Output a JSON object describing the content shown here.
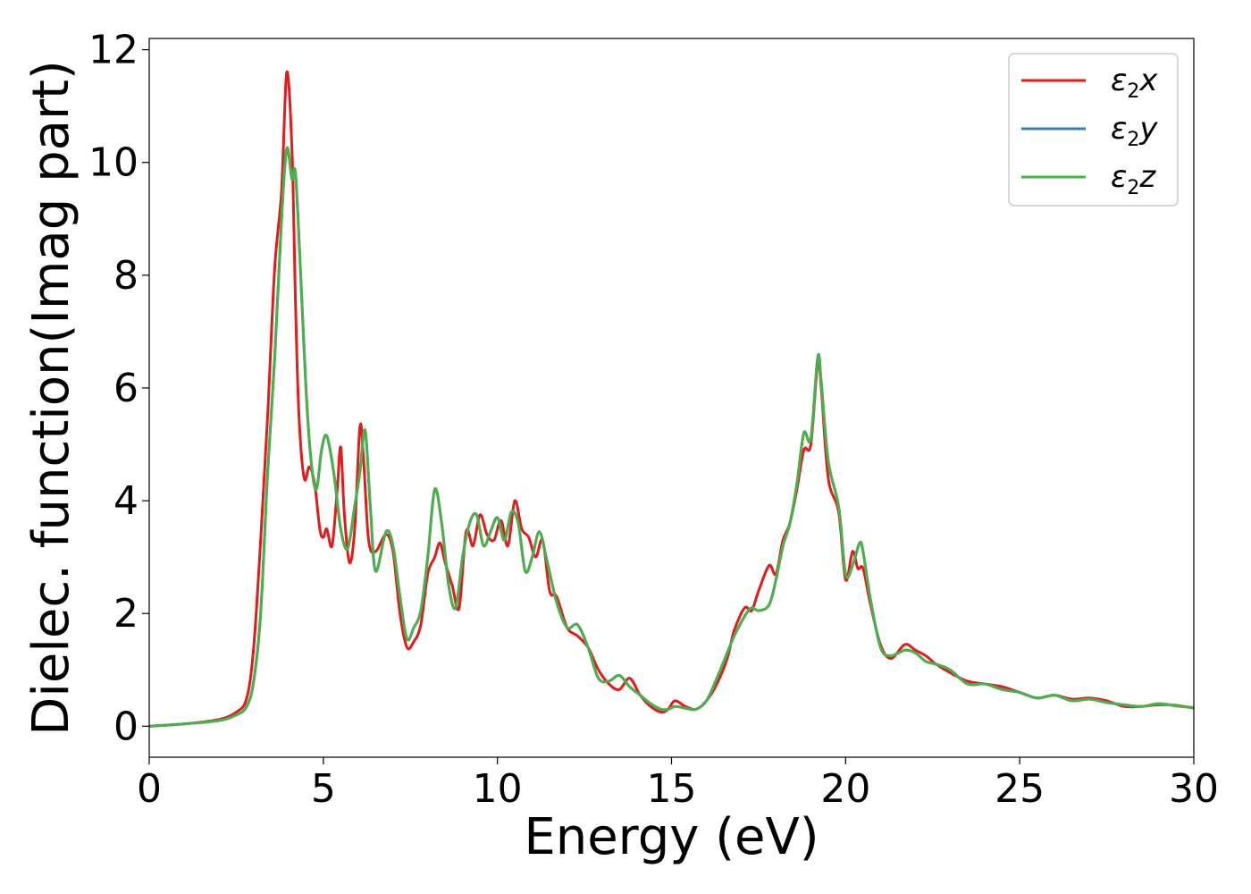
{
  "chart_data": {
    "type": "line",
    "xlabel": "Energy (eV)",
    "ylabel": "Dielec. function(Imag part)",
    "xlim": [
      0,
      30
    ],
    "ylim": [
      -0.55,
      12.2
    ],
    "xticks": [
      "0",
      "5",
      "10",
      "15",
      "20",
      "25",
      "30"
    ],
    "yticks": [
      "0",
      "2",
      "4",
      "6",
      "8",
      "10",
      "12"
    ],
    "grid": false,
    "legend_position": "top-right",
    "series": [
      {
        "name": "ε2x",
        "legend_base": "ε",
        "legend_sub": "2",
        "legend_tail": "x",
        "color": "#e41a1c",
        "x": [
          0,
          1,
          2,
          2.5,
          2.8,
          3.0,
          3.2,
          3.4,
          3.6,
          3.8,
          3.95,
          4.1,
          4.2,
          4.3,
          4.45,
          4.6,
          4.75,
          4.9,
          5.0,
          5.1,
          5.25,
          5.4,
          5.5,
          5.6,
          5.75,
          5.9,
          6.05,
          6.15,
          6.3,
          6.5,
          6.8,
          7.0,
          7.2,
          7.4,
          7.6,
          7.8,
          8.0,
          8.2,
          8.35,
          8.5,
          8.7,
          8.9,
          9.1,
          9.3,
          9.5,
          9.7,
          9.9,
          10.1,
          10.3,
          10.5,
          10.7,
          10.9,
          11.1,
          11.3,
          11.5,
          11.7,
          12.0,
          12.3,
          12.6,
          12.9,
          13.2,
          13.5,
          13.8,
          14.1,
          14.4,
          14.7,
          14.9,
          15.1,
          15.4,
          15.7,
          16.0,
          16.3,
          16.6,
          16.8,
          17.1,
          17.3,
          17.5,
          17.8,
          18.0,
          18.2,
          18.4,
          18.6,
          18.8,
          19.0,
          19.2,
          19.3,
          19.5,
          19.8,
          20.0,
          20.2,
          20.35,
          20.5,
          20.7,
          21.0,
          21.3,
          21.7,
          22.0,
          22.3,
          22.6,
          23.0,
          23.5,
          24.0,
          24.5,
          25.0,
          25.5,
          26.0,
          26.5,
          27.0,
          27.5,
          28.0,
          28.5,
          29.0,
          29.5,
          30.0
        ],
        "y": [
          0,
          0.04,
          0.12,
          0.25,
          0.5,
          1.4,
          3.3,
          5.5,
          8.1,
          9.5,
          11.6,
          10.2,
          7.5,
          5.5,
          4.4,
          4.6,
          4.3,
          3.5,
          3.35,
          3.5,
          3.2,
          4.2,
          4.95,
          3.8,
          2.9,
          3.5,
          5.3,
          4.8,
          3.3,
          3.1,
          3.4,
          3.1,
          2.0,
          1.4,
          1.5,
          1.8,
          2.7,
          3.0,
          3.25,
          2.9,
          2.5,
          2.1,
          3.45,
          3.2,
          3.75,
          3.4,
          3.3,
          3.65,
          3.2,
          4.0,
          3.5,
          3.35,
          3.0,
          3.3,
          2.4,
          2.3,
          1.75,
          1.6,
          1.4,
          1.0,
          0.75,
          0.65,
          0.85,
          0.55,
          0.35,
          0.25,
          0.3,
          0.45,
          0.35,
          0.3,
          0.45,
          0.75,
          1.2,
          1.7,
          2.1,
          2.05,
          2.4,
          2.85,
          2.7,
          3.3,
          3.6,
          4.2,
          4.9,
          5.0,
          6.45,
          6.0,
          4.4,
          3.8,
          2.6,
          3.1,
          2.8,
          2.8,
          2.2,
          1.45,
          1.2,
          1.45,
          1.35,
          1.25,
          1.1,
          0.95,
          0.8,
          0.75,
          0.7,
          0.6,
          0.5,
          0.55,
          0.48,
          0.5,
          0.45,
          0.35,
          0.35,
          0.38,
          0.37,
          0.32
        ]
      },
      {
        "name": "ε2y",
        "legend_base": "ε",
        "legend_sub": "2",
        "legend_tail": "y",
        "color": "#377eb8",
        "x": [
          0,
          1,
          2,
          2.5,
          2.8,
          3.0,
          3.2,
          3.4,
          3.6,
          3.8,
          3.95,
          4.1,
          4.2,
          4.35,
          4.5,
          4.65,
          4.8,
          4.95,
          5.1,
          5.3,
          5.5,
          5.7,
          5.9,
          6.05,
          6.2,
          6.35,
          6.5,
          6.8,
          7.0,
          7.2,
          7.4,
          7.6,
          7.8,
          8.0,
          8.2,
          8.4,
          8.6,
          8.8,
          9.0,
          9.2,
          9.4,
          9.6,
          9.8,
          10.0,
          10.2,
          10.4,
          10.6,
          10.8,
          11.0,
          11.2,
          11.4,
          11.7,
          12.0,
          12.3,
          12.6,
          12.9,
          13.2,
          13.5,
          13.8,
          14.1,
          14.4,
          14.7,
          14.9,
          15.1,
          15.4,
          15.7,
          16.0,
          16.3,
          16.6,
          16.8,
          17.1,
          17.3,
          17.5,
          17.8,
          18.0,
          18.2,
          18.4,
          18.6,
          18.8,
          19.0,
          19.2,
          19.3,
          19.5,
          19.8,
          20.0,
          20.2,
          20.4,
          20.5,
          20.7,
          21.0,
          21.3,
          21.7,
          22.0,
          22.3,
          22.6,
          23.0,
          23.5,
          24.0,
          24.5,
          25.0,
          25.5,
          26.0,
          26.5,
          27.0,
          27.5,
          28.0,
          28.5,
          29.0,
          29.5,
          30.0
        ],
        "y": [
          0,
          0.04,
          0.1,
          0.2,
          0.35,
          0.8,
          2.0,
          4.5,
          6.5,
          9.0,
          10.25,
          9.7,
          9.8,
          8.0,
          6.0,
          4.7,
          4.2,
          4.9,
          5.15,
          4.5,
          3.5,
          3.15,
          3.9,
          4.5,
          5.25,
          3.9,
          2.75,
          3.45,
          3.2,
          2.3,
          1.55,
          1.75,
          2.05,
          3.0,
          4.2,
          3.6,
          2.5,
          2.1,
          3.0,
          3.6,
          3.75,
          3.2,
          3.45,
          3.7,
          3.3,
          3.8,
          3.6,
          2.75,
          3.0,
          3.45,
          3.0,
          2.2,
          1.75,
          1.8,
          1.4,
          0.85,
          0.8,
          0.9,
          0.7,
          0.55,
          0.4,
          0.3,
          0.3,
          0.35,
          0.32,
          0.3,
          0.45,
          0.85,
          1.3,
          1.6,
          1.95,
          2.1,
          2.05,
          2.15,
          2.6,
          3.2,
          3.6,
          4.3,
          5.2,
          5.1,
          6.55,
          6.1,
          4.7,
          3.9,
          2.7,
          2.85,
          3.25,
          3.1,
          2.3,
          1.4,
          1.25,
          1.35,
          1.3,
          1.15,
          1.1,
          1.0,
          0.75,
          0.75,
          0.65,
          0.6,
          0.5,
          0.55,
          0.45,
          0.48,
          0.42,
          0.38,
          0.35,
          0.4,
          0.36,
          0.33
        ]
      },
      {
        "name": "ε2z",
        "legend_base": "ε",
        "legend_sub": "2",
        "legend_tail": "z",
        "color": "#4daf4a",
        "x": [
          0,
          1,
          2,
          2.5,
          2.8,
          3.0,
          3.2,
          3.4,
          3.6,
          3.8,
          3.95,
          4.1,
          4.2,
          4.35,
          4.5,
          4.65,
          4.8,
          4.95,
          5.1,
          5.3,
          5.5,
          5.7,
          5.9,
          6.05,
          6.2,
          6.35,
          6.5,
          6.8,
          7.0,
          7.2,
          7.4,
          7.6,
          7.8,
          8.0,
          8.2,
          8.4,
          8.6,
          8.8,
          9.0,
          9.2,
          9.4,
          9.6,
          9.8,
          10.0,
          10.2,
          10.4,
          10.6,
          10.8,
          11.0,
          11.2,
          11.4,
          11.7,
          12.0,
          12.3,
          12.6,
          12.9,
          13.2,
          13.5,
          13.8,
          14.1,
          14.4,
          14.7,
          14.9,
          15.1,
          15.4,
          15.7,
          16.0,
          16.3,
          16.6,
          16.8,
          17.1,
          17.3,
          17.5,
          17.8,
          18.0,
          18.2,
          18.4,
          18.6,
          18.8,
          19.0,
          19.2,
          19.3,
          19.5,
          19.8,
          20.0,
          20.2,
          20.4,
          20.5,
          20.7,
          21.0,
          21.3,
          21.7,
          22.0,
          22.3,
          22.6,
          23.0,
          23.5,
          24.0,
          24.5,
          25.0,
          25.5,
          26.0,
          26.5,
          27.0,
          27.5,
          28.0,
          28.5,
          29.0,
          29.5,
          30.0
        ],
        "y": [
          0,
          0.04,
          0.1,
          0.2,
          0.35,
          0.8,
          2.0,
          4.5,
          6.5,
          9.0,
          10.25,
          9.7,
          9.8,
          8.0,
          6.0,
          4.7,
          4.2,
          4.9,
          5.15,
          4.5,
          3.5,
          3.15,
          3.9,
          4.5,
          5.25,
          3.9,
          2.75,
          3.45,
          3.2,
          2.3,
          1.55,
          1.75,
          2.05,
          3.0,
          4.2,
          3.6,
          2.5,
          2.1,
          3.0,
          3.6,
          3.75,
          3.2,
          3.45,
          3.7,
          3.3,
          3.8,
          3.6,
          2.75,
          3.0,
          3.45,
          3.0,
          2.2,
          1.75,
          1.8,
          1.4,
          0.85,
          0.8,
          0.9,
          0.7,
          0.55,
          0.4,
          0.3,
          0.3,
          0.35,
          0.32,
          0.3,
          0.45,
          0.85,
          1.3,
          1.6,
          1.95,
          2.1,
          2.05,
          2.15,
          2.6,
          3.2,
          3.6,
          4.3,
          5.2,
          5.1,
          6.55,
          6.1,
          4.7,
          3.9,
          2.7,
          2.85,
          3.25,
          3.1,
          2.3,
          1.4,
          1.25,
          1.35,
          1.3,
          1.15,
          1.1,
          1.0,
          0.75,
          0.75,
          0.65,
          0.6,
          0.5,
          0.55,
          0.45,
          0.48,
          0.42,
          0.38,
          0.35,
          0.4,
          0.36,
          0.33
        ]
      }
    ]
  }
}
